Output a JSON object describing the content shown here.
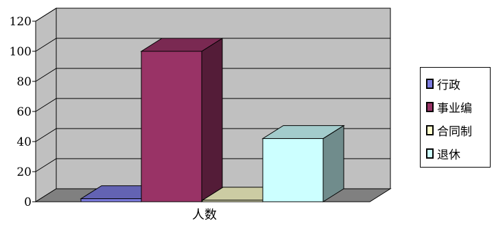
{
  "chart_data": {
    "type": "bar",
    "categories": [
      "人数"
    ],
    "series": [
      {
        "name": "行政",
        "values": [
          2
        ],
        "color": "#7c7ce0"
      },
      {
        "name": "事业编",
        "values": [
          100
        ],
        "color": "#993366"
      },
      {
        "name": "合同制",
        "values": [
          1
        ],
        "color": "#ffffcc"
      },
      {
        "name": "退休",
        "values": [
          42
        ],
        "color": "#ccffff"
      }
    ],
    "ylim": [
      0,
      120
    ],
    "yticks": [
      "0",
      "20",
      "40",
      "60",
      "80",
      "100",
      "120"
    ],
    "title": "",
    "xlabel": "",
    "ylabel": "",
    "grid": true,
    "three_d": true,
    "legend_position": "right",
    "wall_color": "#c0c0c0",
    "floor_color": "#808080"
  }
}
